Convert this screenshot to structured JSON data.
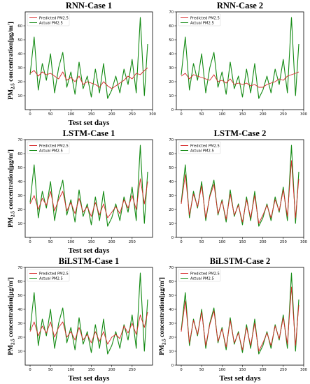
{
  "figure": {
    "legend_labels": [
      "Predicted PM2.5",
      "Actual PM2.5"
    ],
    "colors": {
      "predicted": "#d62728",
      "actual": "#138a13"
    }
  },
  "chart_data": [
    {
      "type": "line",
      "title": "RNN-Case 1",
      "xlabel": "Test set days",
      "ylabel": "PM2.5 concentration[μg/m³]",
      "xlim": [
        -12,
        300
      ],
      "ylim": [
        0,
        70
      ],
      "xticks": [
        0,
        50,
        100,
        150,
        200,
        250,
        300
      ],
      "yticks": [
        10,
        20,
        30,
        40,
        50,
        60
      ],
      "legend_position": "top-left",
      "x": [
        0,
        10,
        20,
        30,
        40,
        50,
        60,
        70,
        80,
        90,
        100,
        110,
        120,
        130,
        140,
        150,
        160,
        170,
        180,
        190,
        200,
        210,
        220,
        230,
        240,
        250,
        260,
        270,
        280,
        288
      ],
      "series": [
        {
          "name": "Predicted PM2.5",
          "color": "#d62728",
          "values": [
            26,
            28,
            24,
            27,
            25,
            26,
            24,
            22,
            27,
            21,
            23,
            20,
            24,
            18,
            20,
            19,
            18,
            16,
            20,
            17,
            15,
            17,
            19,
            21,
            24,
            22,
            26,
            25,
            28,
            30
          ]
        },
        {
          "name": "Actual PM2.5",
          "color": "#138a13",
          "values": [
            25,
            52,
            14,
            33,
            21,
            40,
            12,
            30,
            41,
            16,
            27,
            11,
            34,
            15,
            24,
            9,
            29,
            12,
            33,
            8,
            14,
            24,
            12,
            29,
            18,
            36,
            12,
            66,
            10,
            47
          ]
        }
      ]
    },
    {
      "type": "line",
      "title": "RNN-Case 2",
      "xlabel": "",
      "ylabel": "",
      "xlim": [
        -12,
        300
      ],
      "ylim": [
        0,
        70
      ],
      "xticks": [
        0,
        50,
        100,
        150,
        200,
        250,
        300
      ],
      "yticks": [
        0,
        10,
        20,
        30,
        40,
        50,
        60,
        70
      ],
      "legend_position": "top-left",
      "x": [
        0,
        10,
        20,
        30,
        40,
        50,
        60,
        70,
        80,
        90,
        100,
        110,
        120,
        130,
        140,
        150,
        160,
        170,
        180,
        190,
        200,
        210,
        220,
        230,
        240,
        250,
        260,
        270,
        280,
        288
      ],
      "series": [
        {
          "name": "Predicted PM2.5",
          "color": "#d62728",
          "values": [
            24,
            26,
            22,
            25,
            24,
            23,
            22,
            21,
            25,
            20,
            21,
            19,
            22,
            18,
            19,
            18,
            19,
            17,
            18,
            16,
            16,
            18,
            19,
            20,
            22,
            21,
            24,
            25,
            26,
            27
          ]
        },
        {
          "name": "Actual PM2.5",
          "color": "#138a13",
          "values": [
            25,
            52,
            14,
            33,
            21,
            40,
            12,
            30,
            41,
            16,
            27,
            11,
            34,
            15,
            24,
            9,
            29,
            12,
            33,
            8,
            14,
            24,
            12,
            29,
            18,
            36,
            12,
            66,
            10,
            47
          ]
        }
      ]
    },
    {
      "type": "line",
      "title": "LSTM-Case 1",
      "xlabel": "Test set days",
      "ylabel": "PM2.5 concentration[μg/m³]",
      "xlim": [
        -12,
        300
      ],
      "ylim": [
        0,
        70
      ],
      "xticks": [
        0,
        50,
        100,
        150,
        200,
        250
      ],
      "yticks": [
        10,
        20,
        30,
        40,
        50,
        60,
        70
      ],
      "legend_position": "top-left",
      "x": [
        0,
        10,
        20,
        30,
        40,
        50,
        60,
        70,
        80,
        90,
        100,
        110,
        120,
        130,
        140,
        150,
        160,
        170,
        180,
        190,
        200,
        210,
        220,
        230,
        240,
        250,
        260,
        270,
        280,
        288
      ],
      "series": [
        {
          "name": "Predicted PM2.5",
          "color": "#d62728",
          "values": [
            24,
            30,
            20,
            28,
            23,
            33,
            19,
            27,
            33,
            19,
            25,
            17,
            28,
            18,
            22,
            15,
            25,
            16,
            24,
            14,
            18,
            22,
            17,
            27,
            21,
            30,
            20,
            42,
            24,
            40
          ]
        },
        {
          "name": "Actual PM2.5",
          "color": "#138a13",
          "values": [
            25,
            52,
            14,
            33,
            21,
            40,
            12,
            30,
            41,
            16,
            27,
            11,
            34,
            15,
            24,
            9,
            29,
            12,
            33,
            8,
            14,
            24,
            12,
            29,
            18,
            36,
            12,
            66,
            10,
            47
          ]
        }
      ]
    },
    {
      "type": "line",
      "title": "LSTM-Case 2",
      "xlabel": "",
      "ylabel": "",
      "xlim": [
        -12,
        300
      ],
      "ylim": [
        0,
        70
      ],
      "xticks": [
        0,
        50,
        100,
        150,
        200,
        250,
        300
      ],
      "yticks": [
        0,
        10,
        20,
        30,
        40,
        50,
        60,
        70
      ],
      "legend_position": "top-left",
      "x": [
        0,
        10,
        20,
        30,
        40,
        50,
        60,
        70,
        80,
        90,
        100,
        110,
        120,
        130,
        140,
        150,
        160,
        170,
        180,
        190,
        200,
        210,
        220,
        230,
        240,
        250,
        260,
        270,
        280,
        288
      ],
      "series": [
        {
          "name": "Predicted PM2.5",
          "color": "#d62728",
          "values": [
            24,
            45,
            16,
            31,
            22,
            37,
            14,
            29,
            38,
            17,
            26,
            13,
            31,
            16,
            23,
            11,
            27,
            14,
            30,
            10,
            16,
            23,
            14,
            27,
            19,
            34,
            15,
            55,
            14,
            42
          ]
        },
        {
          "name": "Actual PM2.5",
          "color": "#138a13",
          "values": [
            25,
            52,
            14,
            33,
            21,
            40,
            12,
            30,
            41,
            16,
            27,
            11,
            34,
            15,
            24,
            9,
            29,
            12,
            33,
            8,
            14,
            24,
            12,
            29,
            18,
            36,
            12,
            66,
            10,
            47
          ]
        }
      ]
    },
    {
      "type": "line",
      "title": "BiLSTM-Case 1",
      "xlabel": "Test set days",
      "ylabel": "PM2.5 concentration[μg/m³]",
      "xlim": [
        -12,
        300
      ],
      "ylim": [
        0,
        70
      ],
      "xticks": [
        0,
        50,
        100,
        150,
        200,
        250
      ],
      "yticks": [
        10,
        20,
        30,
        40,
        50,
        60,
        70
      ],
      "legend_position": "top-left",
      "x": [
        0,
        10,
        20,
        30,
        40,
        50,
        60,
        70,
        80,
        90,
        100,
        110,
        120,
        130,
        140,
        150,
        160,
        170,
        180,
        190,
        200,
        210,
        220,
        230,
        240,
        250,
        260,
        270,
        280,
        288
      ],
      "series": [
        {
          "name": "Predicted PM2.5",
          "color": "#d62728",
          "values": [
            24,
            31,
            21,
            28,
            23,
            31,
            20,
            27,
            31,
            20,
            24,
            18,
            27,
            18,
            22,
            16,
            24,
            17,
            24,
            15,
            20,
            22,
            19,
            28,
            23,
            30,
            22,
            36,
            27,
            38
          ]
        },
        {
          "name": "Actual PM2.5",
          "color": "#138a13",
          "values": [
            25,
            52,
            14,
            33,
            21,
            40,
            12,
            30,
            41,
            16,
            27,
            11,
            34,
            15,
            24,
            9,
            29,
            12,
            33,
            8,
            14,
            24,
            12,
            29,
            18,
            36,
            12,
            66,
            10,
            47
          ]
        }
      ]
    },
    {
      "type": "line",
      "title": "BiLSTM-Case 2",
      "xlabel": "Test set days",
      "ylabel": "PM2.5 concentration[μg/m³]",
      "xlim": [
        -12,
        300
      ],
      "ylim": [
        0,
        70
      ],
      "xticks": [
        0,
        50,
        100,
        150,
        200,
        250,
        300
      ],
      "yticks": [
        0,
        10,
        20,
        30,
        40,
        50,
        60,
        70
      ],
      "legend_position": "top-left",
      "x": [
        0,
        10,
        20,
        30,
        40,
        50,
        60,
        70,
        80,
        90,
        100,
        110,
        120,
        130,
        140,
        150,
        160,
        170,
        180,
        190,
        200,
        210,
        220,
        230,
        240,
        250,
        260,
        270,
        280,
        288
      ],
      "series": [
        {
          "name": "Predicted PM2.5",
          "color": "#d62728",
          "values": [
            24,
            46,
            16,
            32,
            22,
            38,
            14,
            29,
            39,
            17,
            26,
            13,
            32,
            16,
            23,
            11,
            27,
            14,
            30,
            10,
            16,
            23,
            14,
            28,
            19,
            34,
            15,
            56,
            14,
            43
          ]
        },
        {
          "name": "Actual PM2.5",
          "color": "#138a13",
          "values": [
            25,
            52,
            14,
            33,
            21,
            40,
            12,
            30,
            41,
            16,
            27,
            11,
            34,
            15,
            24,
            9,
            29,
            12,
            33,
            8,
            14,
            24,
            12,
            29,
            18,
            36,
            12,
            66,
            10,
            47
          ]
        }
      ]
    }
  ]
}
